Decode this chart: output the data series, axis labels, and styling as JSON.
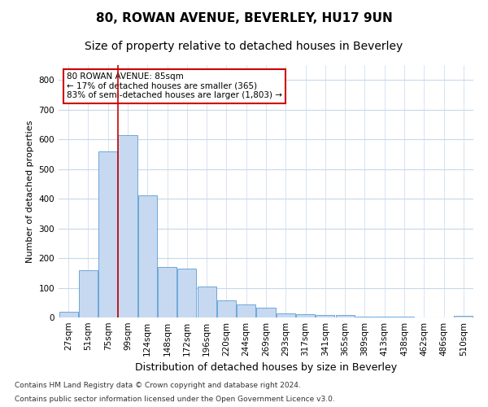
{
  "title": "80, ROWAN AVENUE, BEVERLEY, HU17 9UN",
  "subtitle": "Size of property relative to detached houses in Beverley",
  "xlabel": "Distribution of detached houses by size in Beverley",
  "ylabel": "Number of detached properties",
  "footnote1": "Contains HM Land Registry data © Crown copyright and database right 2024.",
  "footnote2": "Contains public sector information licensed under the Open Government Licence v3.0.",
  "categories": [
    "27sqm",
    "51sqm",
    "75sqm",
    "99sqm",
    "124sqm",
    "148sqm",
    "172sqm",
    "196sqm",
    "220sqm",
    "244sqm",
    "269sqm",
    "293sqm",
    "317sqm",
    "341sqm",
    "365sqm",
    "389sqm",
    "413sqm",
    "438sqm",
    "462sqm",
    "486sqm",
    "510sqm"
  ],
  "values": [
    20,
    160,
    560,
    615,
    410,
    170,
    165,
    105,
    57,
    43,
    32,
    15,
    10,
    8,
    7,
    4,
    4,
    2,
    1,
    0,
    6
  ],
  "bar_color": "#c6d9f0",
  "bar_edge_color": "#5b9bd5",
  "red_line_x": 2.5,
  "annotation_text": "80 ROWAN AVENUE: 85sqm\n← 17% of detached houses are smaller (365)\n83% of semi-detached houses are larger (1,803) →",
  "annotation_box_color": "#ffffff",
  "annotation_border_color": "#cc0000",
  "ylim": [
    0,
    850
  ],
  "yticks": [
    0,
    100,
    200,
    300,
    400,
    500,
    600,
    700,
    800
  ],
  "background_color": "#ffffff",
  "grid_color": "#c8d8ea",
  "title_fontsize": 11,
  "subtitle_fontsize": 10,
  "xlabel_fontsize": 9,
  "ylabel_fontsize": 8,
  "tick_fontsize": 7.5,
  "footnote_fontsize": 6.5
}
